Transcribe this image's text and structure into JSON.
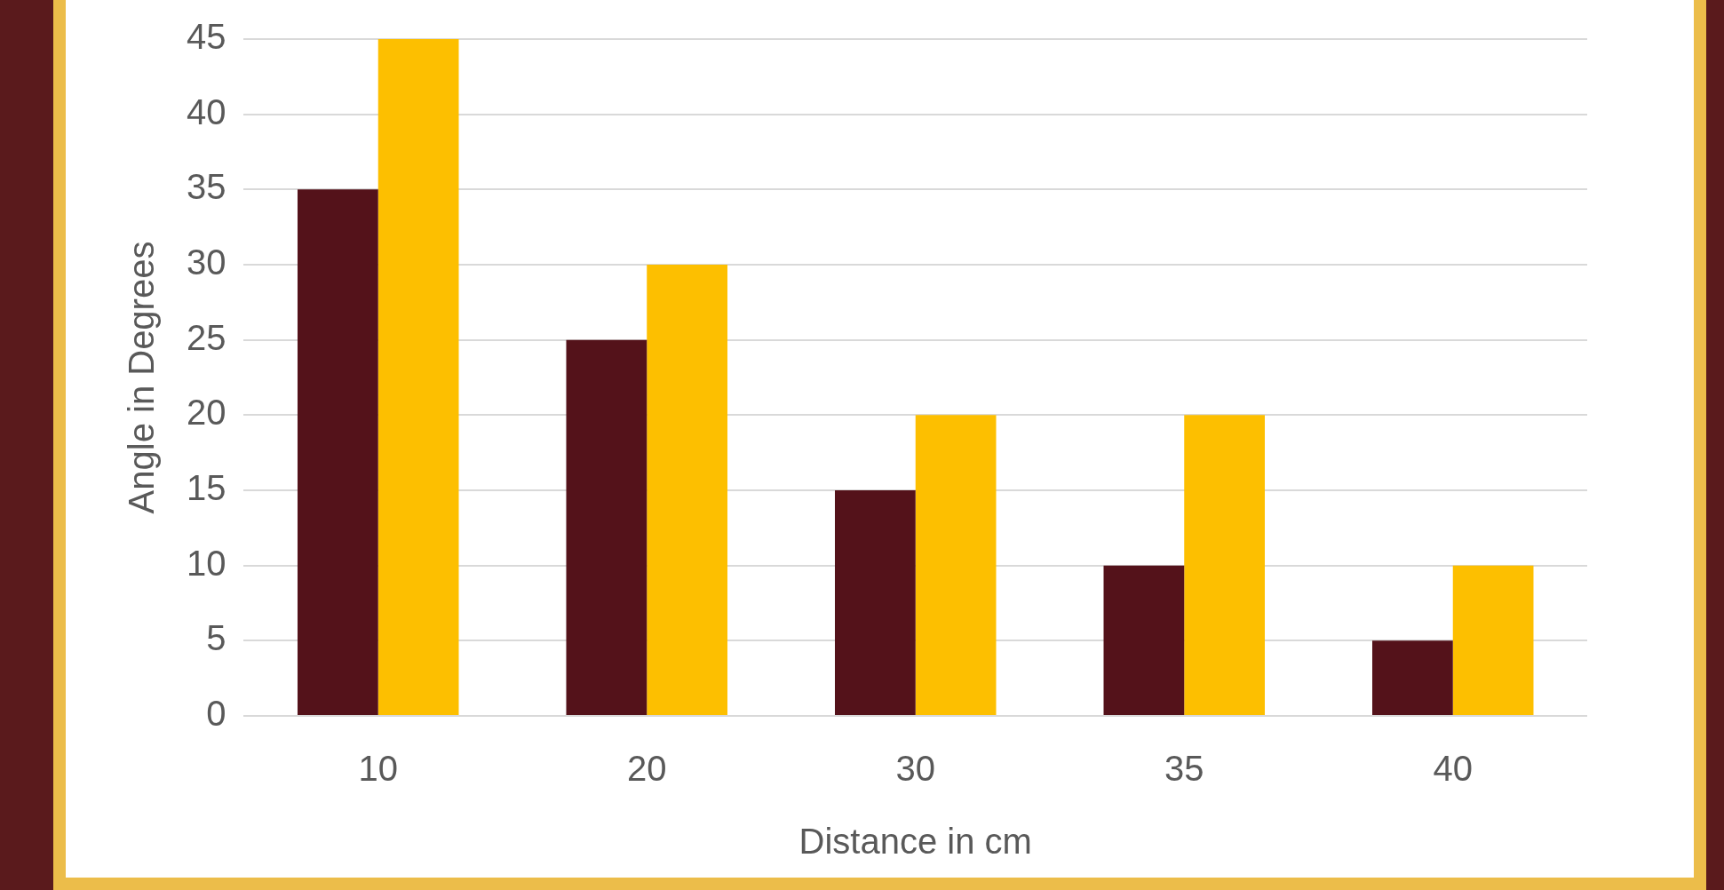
{
  "chart_data": {
    "type": "bar",
    "xlabel": "Distance in cm",
    "ylabel": "Angle in Degrees",
    "categories": [
      "10",
      "20",
      "30",
      "35",
      "40"
    ],
    "series": [
      {
        "color": "#54121a",
        "values": [
          35,
          25,
          15,
          10,
          5
        ]
      },
      {
        "color": "#fdbf00",
        "values": [
          45,
          30,
          20,
          20,
          10
        ]
      }
    ],
    "ylim": [
      0,
      45
    ],
    "yticks": [
      0,
      5,
      10,
      15,
      20,
      25,
      30,
      35,
      40,
      45
    ],
    "grid": "y",
    "legend": false
  }
}
